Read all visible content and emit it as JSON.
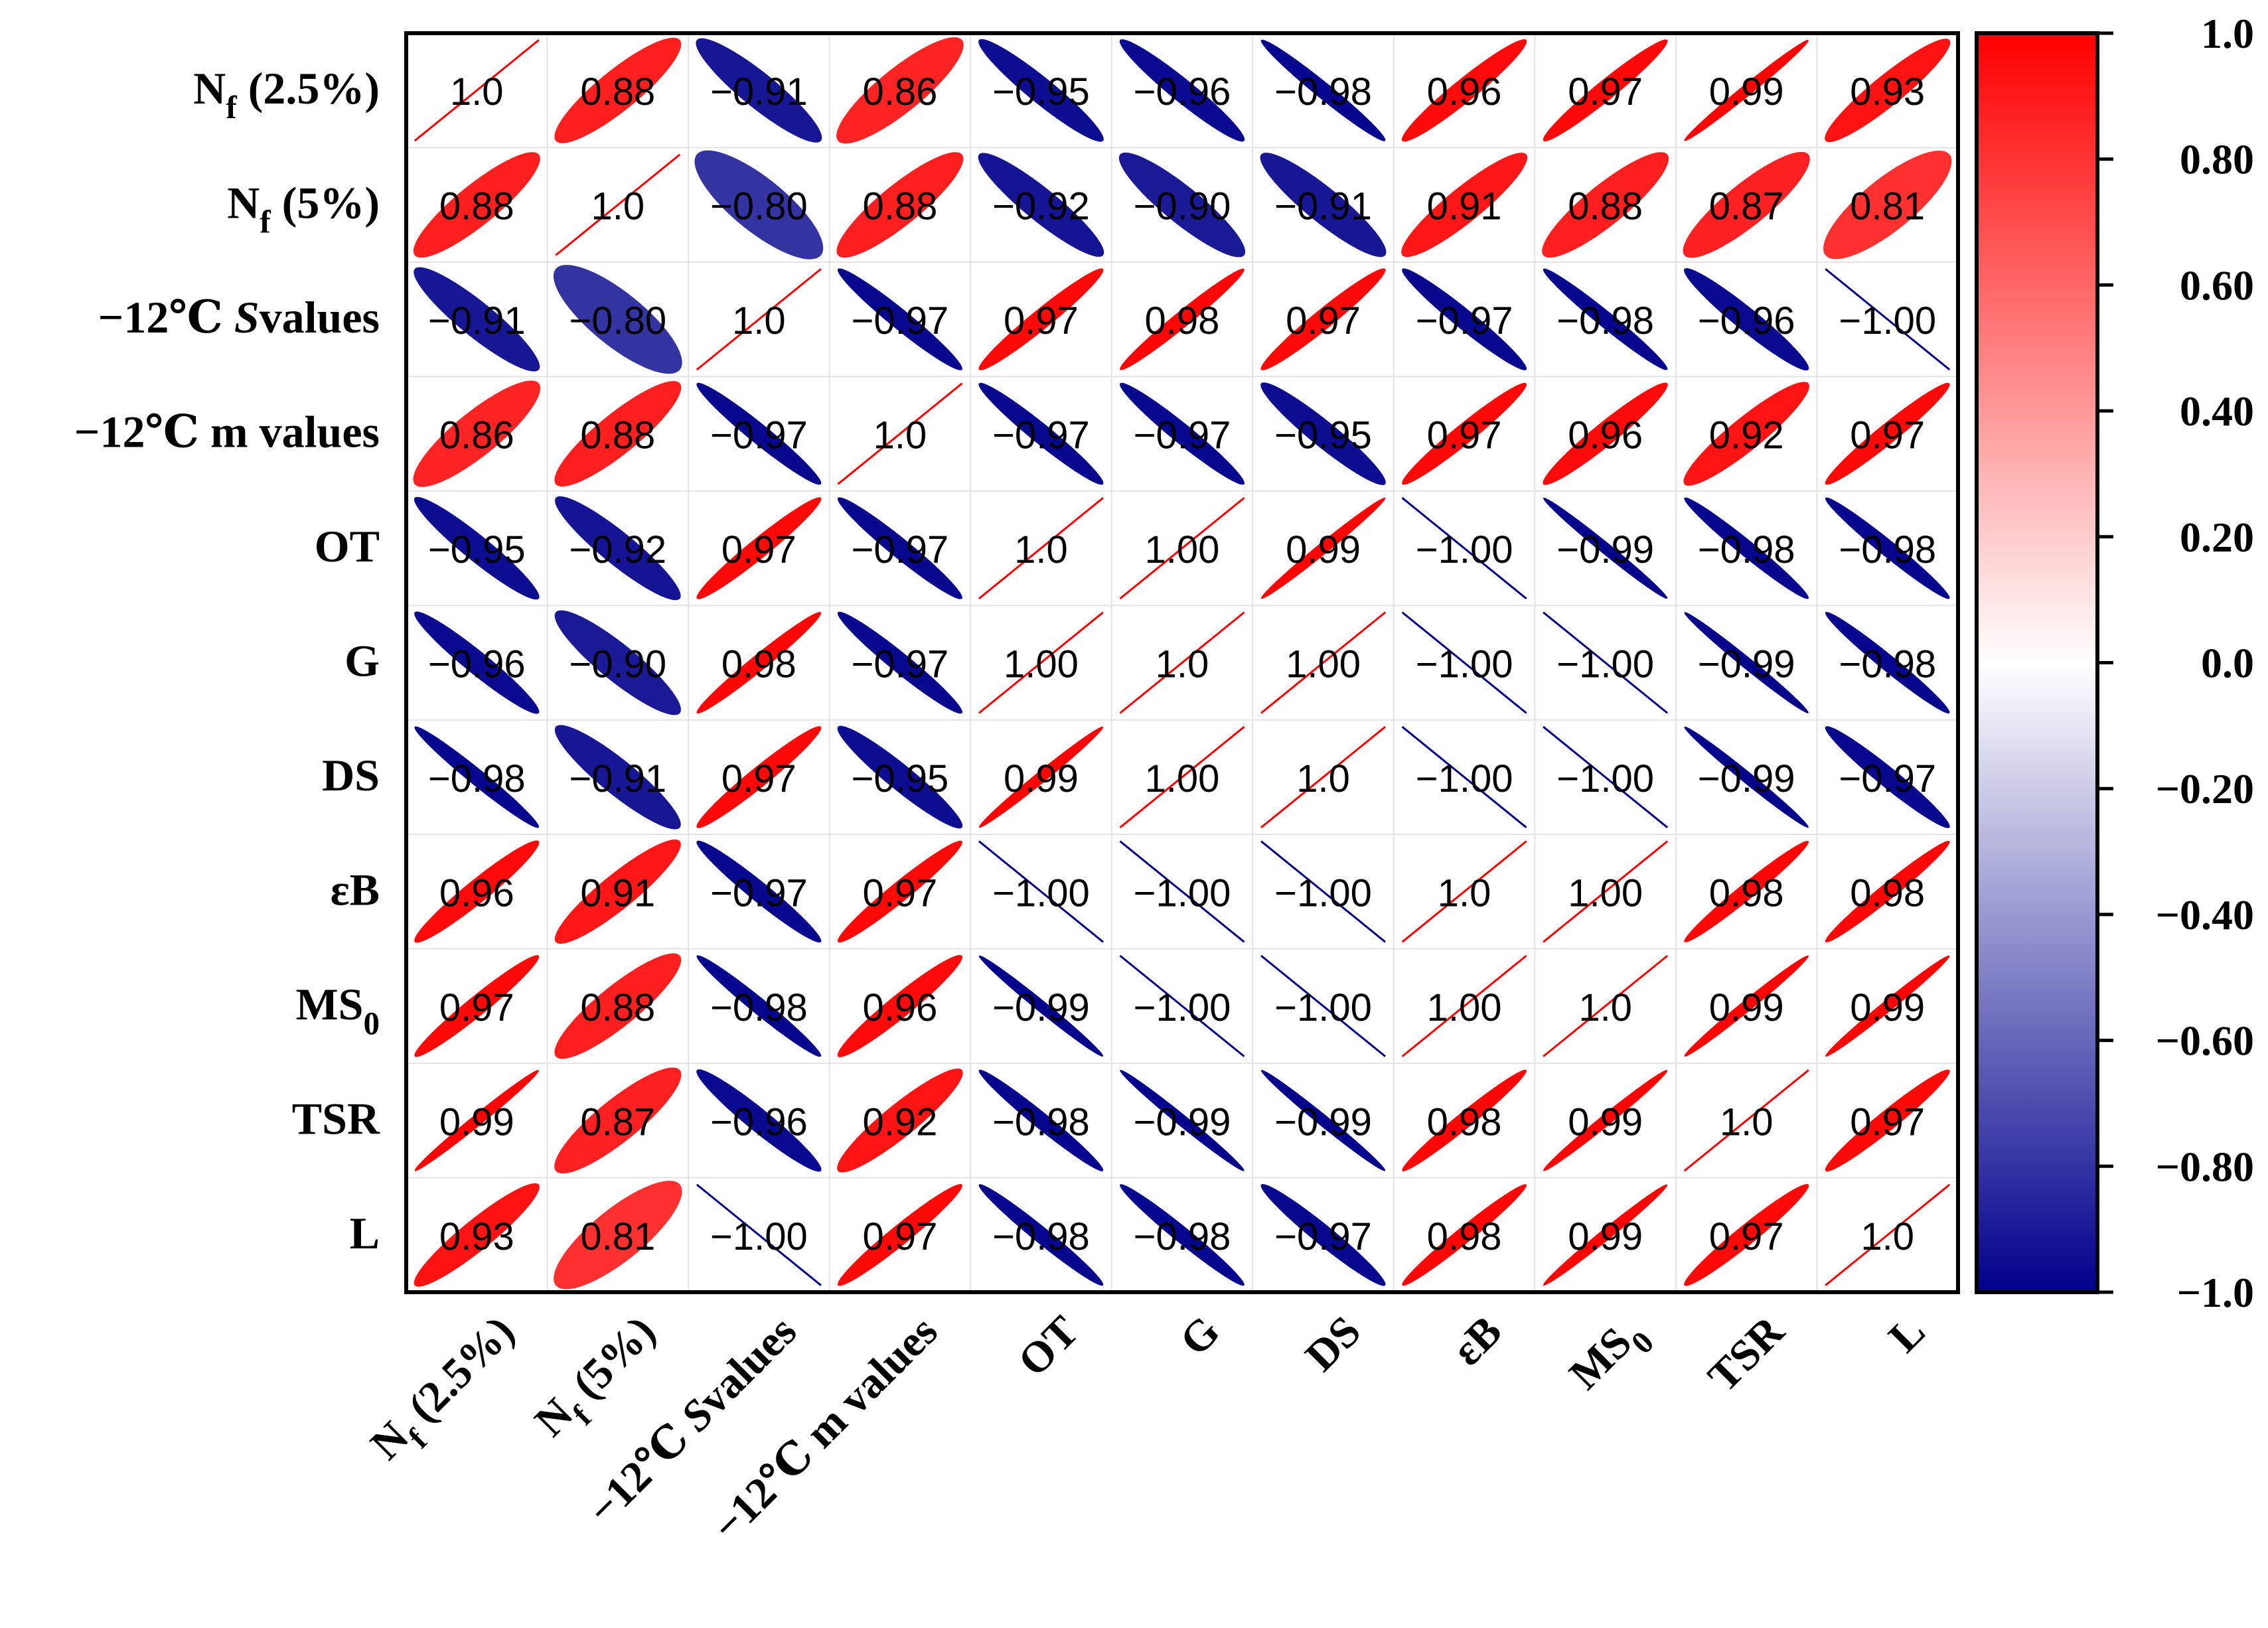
{
  "chart_data": {
    "type": "heatmap",
    "style": "ellipse correlation matrix",
    "title": "",
    "variables": [
      {
        "main": "N",
        "sub": "f",
        "tail": " (2.5%)"
      },
      {
        "main": "N",
        "sub": "f",
        "tail": " (5%)"
      },
      {
        "main": "−12℃  ",
        "italic": "S",
        "tail": "values"
      },
      {
        "main": "−12℃ m values"
      },
      {
        "main": "OT"
      },
      {
        "main": "G"
      },
      {
        "main": "DS"
      },
      {
        "main": "εB"
      },
      {
        "main": "MS",
        "sub": "0"
      },
      {
        "main": "TSR"
      },
      {
        "main": "L"
      }
    ],
    "values": [
      [
        1.0,
        0.88,
        -0.91,
        0.86,
        -0.95,
        -0.96,
        -0.98,
        0.96,
        0.97,
        0.99,
        0.93
      ],
      [
        0.88,
        1.0,
        -0.8,
        0.88,
        -0.92,
        -0.9,
        -0.91,
        0.91,
        0.88,
        0.87,
        0.81
      ],
      [
        -0.91,
        -0.8,
        1.0,
        -0.97,
        0.97,
        0.98,
        0.97,
        -0.97,
        -0.98,
        -0.96,
        -1.0
      ],
      [
        0.86,
        0.88,
        -0.97,
        1.0,
        -0.97,
        -0.97,
        -0.95,
        0.97,
        0.96,
        0.92,
        0.97
      ],
      [
        -0.95,
        -0.92,
        0.97,
        -0.97,
        1.0,
        1.0,
        0.99,
        -1.0,
        -0.99,
        -0.98,
        -0.98
      ],
      [
        -0.96,
        -0.9,
        0.98,
        -0.97,
        1.0,
        1.0,
        1.0,
        -1.0,
        -1.0,
        -0.99,
        -0.98
      ],
      [
        -0.98,
        -0.91,
        0.97,
        -0.95,
        0.99,
        1.0,
        1.0,
        -1.0,
        -1.0,
        -0.99,
        -0.97
      ],
      [
        0.96,
        0.91,
        -0.97,
        0.97,
        -1.0,
        -1.0,
        -1.0,
        1.0,
        1.0,
        0.98,
        0.98
      ],
      [
        0.97,
        0.88,
        -0.98,
        0.96,
        -0.99,
        -1.0,
        -1.0,
        1.0,
        1.0,
        0.99,
        0.99
      ],
      [
        0.99,
        0.87,
        -0.96,
        0.92,
        -0.98,
        -0.99,
        -0.99,
        0.98,
        0.99,
        1.0,
        0.97
      ],
      [
        0.93,
        0.81,
        -1.0,
        0.97,
        -0.98,
        -0.98,
        -0.97,
        0.98,
        0.99,
        0.97,
        1.0
      ]
    ],
    "value_range": [
      -1.0,
      1.0
    ],
    "colorbar": {
      "ticks": [
        "1.0",
        "0.80",
        "0.60",
        "0.40",
        "0.20",
        "0.0",
        "−0.20",
        "−0.40",
        "−0.60",
        "−0.80",
        "−1.0"
      ],
      "colors": {
        "high": "#ff0000",
        "mid": "#ffffff",
        "low": "#00008b"
      },
      "placement": "right"
    },
    "grid": true
  }
}
